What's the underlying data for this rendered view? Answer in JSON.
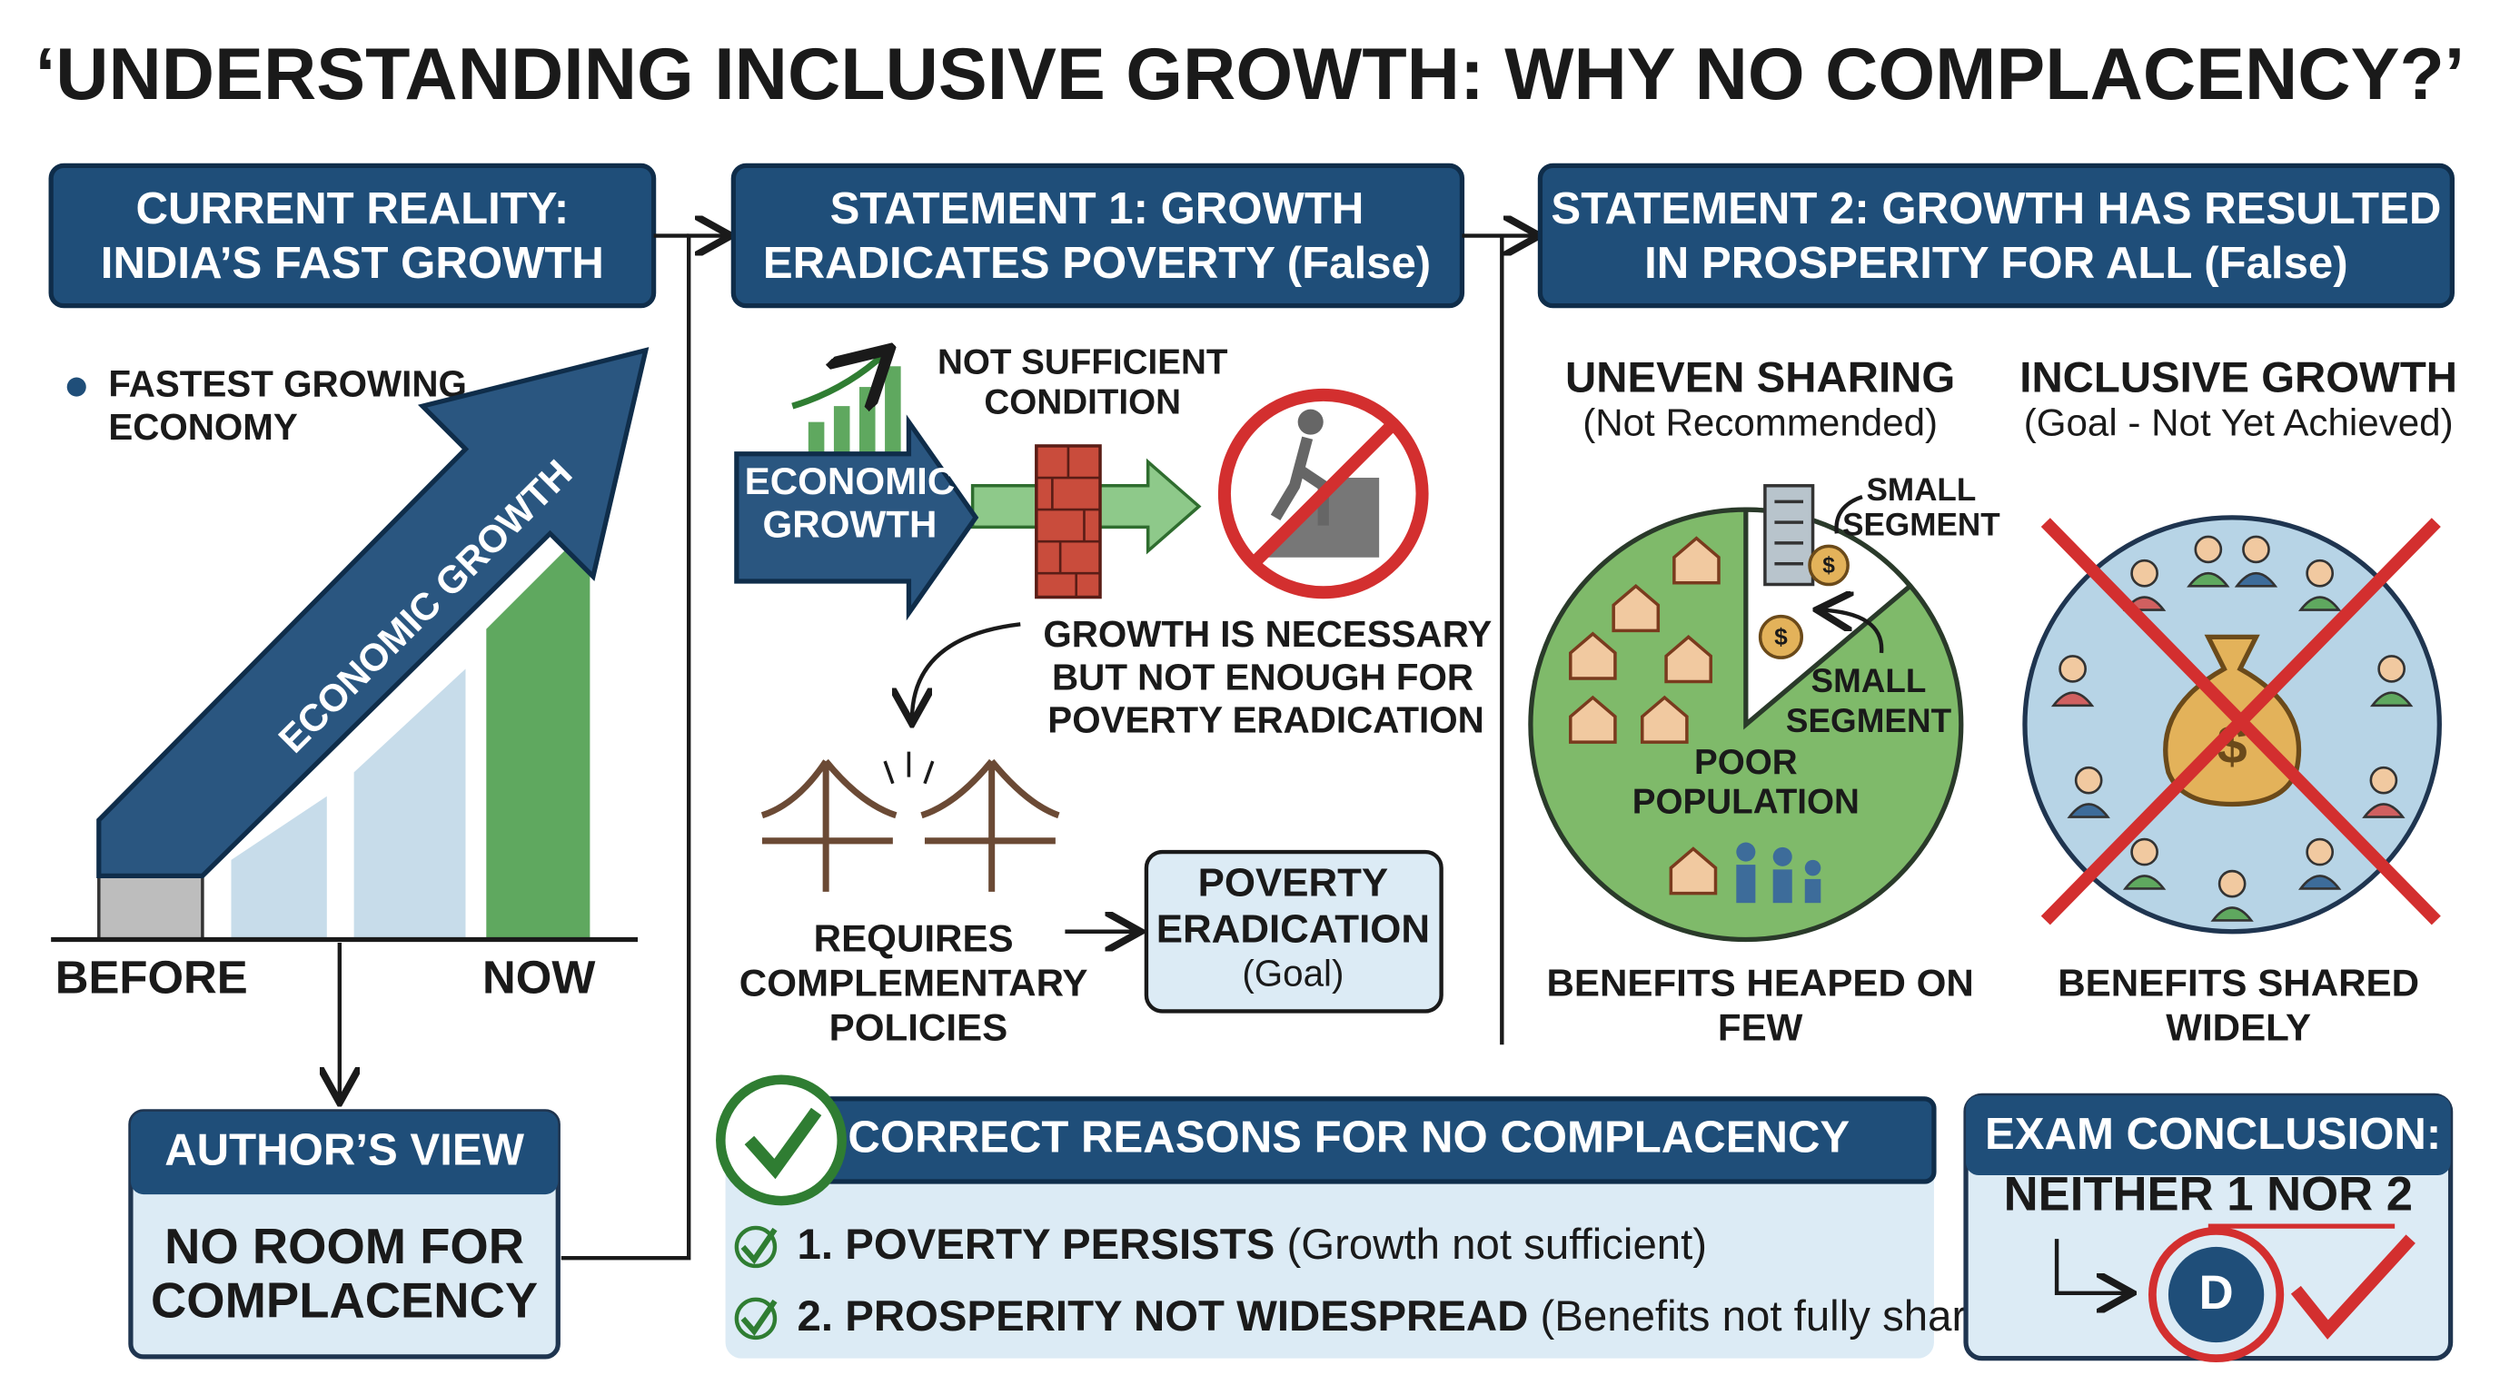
{
  "title": "‘UNDERSTANDING INCLUSIVE GROWTH: WHY NO COMPLACENCY?’",
  "current_reality": {
    "header": [
      "CURRENT REALITY:",
      "INDIA’S FAST GROWTH"
    ],
    "bullet": [
      "FASTEST GROWING",
      "ECONOMY"
    ],
    "arrow_label": "ECONOMIC GROWTH",
    "before": "BEFORE",
    "now": "NOW"
  },
  "author_view": {
    "header": "AUTHOR’S VIEW",
    "body": [
      "NO ROOM FOR",
      "COMPLACENCY"
    ]
  },
  "statement1": {
    "header": [
      "STATEMENT 1: GROWTH",
      "ERADICATES POVERTY (False)"
    ],
    "arrow_label": [
      "ECONOMIC",
      "GROWTH"
    ],
    "wall_label": [
      "NOT SUFFICIENT",
      "CONDITION"
    ],
    "note": [
      "GROWTH IS NECESSARY",
      "BUT NOT ENOUGH FOR",
      "POVERTY ERADICATION"
    ],
    "requires": [
      "REQUIRES",
      "COMPLEMENTARY",
      "POLICIES"
    ],
    "goal": [
      "POVERTY",
      "ERADICATION",
      "(Goal)"
    ]
  },
  "statement2": {
    "header": [
      "STATEMENT 2: GROWTH HAS RESULTED",
      "IN PROSPERITY FOR ALL (False)"
    ],
    "uneven": {
      "title": "UNEVEN SHARING",
      "subtitle": "(Not Recommended)",
      "segment_top": [
        "SMALL",
        "SEGMENT"
      ],
      "segment_inner": [
        "SMALL",
        "SEGMENT"
      ],
      "population": [
        "POOR",
        "POPULATION"
      ],
      "caption": [
        "BENEFITS HEAPED ON",
        "FEW"
      ],
      "symbol": "$"
    },
    "inclusive": {
      "title": "INCLUSIVE GROWTH",
      "subtitle": "(Goal - Not Yet Achieved)",
      "caption": [
        "BENEFITS SHARED",
        "WIDELY"
      ],
      "symbol": "$"
    }
  },
  "reasons": {
    "header": "CORRECT REASONS FOR NO COMPLACENCY",
    "items": [
      {
        "point": "1. POVERTY PERSISTS",
        "note": "(Growth not sufficient)"
      },
      {
        "point": "2. PROSPERITY NOT WIDESPREAD",
        "note": "(Benefits not fully shared)"
      }
    ]
  },
  "exam": {
    "header": "EXAM CONCLUSION:",
    "answer": "NEITHER 1 NOR 2",
    "option": "D"
  }
}
